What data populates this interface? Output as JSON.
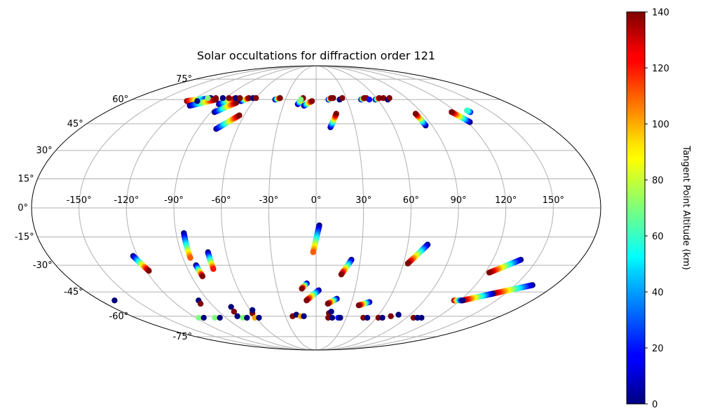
{
  "chart_data": {
    "type": "scatter",
    "projection": "mollweide",
    "title": "Solar occultations for diffraction order 121",
    "lon_ticks": [
      -150,
      -120,
      -90,
      -60,
      -30,
      0,
      30,
      60,
      90,
      120,
      150
    ],
    "lat_ticks": [
      -75,
      -60,
      -45,
      -30,
      -15,
      0,
      15,
      30,
      45,
      60,
      75
    ],
    "grid": true,
    "colorbar": {
      "label": "Tangent Point Altitude (km)",
      "min": 0,
      "max": 140,
      "ticks": [
        0,
        20,
        40,
        60,
        80,
        100,
        120,
        140
      ],
      "colormap": "jet",
      "location": "right"
    },
    "occultation_tracks": [
      {
        "lon_start": -124,
        "lat_start": 59,
        "lon_end": -105,
        "lat_end": 61,
        "alt_start": 140,
        "alt_end": 0
      },
      {
        "lon_start": -115,
        "lat_start": 56,
        "lon_end": -98,
        "lat_end": 60,
        "alt_start": 0,
        "alt_end": 140
      },
      {
        "lon_start": -90,
        "lat_start": 57,
        "lon_end": -80,
        "lat_end": 61,
        "alt_start": 0,
        "alt_end": 140
      },
      {
        "lon_start": -87,
        "lat_start": 52,
        "lon_end": -75,
        "lat_end": 58,
        "alt_start": 0,
        "alt_end": 140
      },
      {
        "lon_start": -76,
        "lat_start": 42,
        "lon_end": -64,
        "lat_end": 50,
        "alt_start": 0,
        "alt_end": 140
      },
      {
        "lon_start": -72,
        "lat_start": 59,
        "lon_end": -67,
        "lat_end": 61,
        "alt_start": 0,
        "alt_end": 140
      },
      {
        "lon_start": -40,
        "lat_start": 60,
        "lon_end": -36,
        "lat_end": 61,
        "alt_start": 0,
        "alt_end": 140
      },
      {
        "lon_start": -17,
        "lat_start": 57,
        "lon_end": -13,
        "lat_end": 61,
        "alt_start": 0,
        "alt_end": 140
      },
      {
        "lon_start": -11,
        "lat_start": 56,
        "lon_end": -4,
        "lat_end": 59,
        "alt_start": 0,
        "alt_end": 140
      },
      {
        "lon_start": 11,
        "lat_start": 43,
        "lon_end": 17,
        "lat_end": 51,
        "alt_start": 0,
        "alt_end": 140
      },
      {
        "lon_start": 12,
        "lat_start": 60,
        "lon_end": 15,
        "lat_end": 61,
        "alt_start": 0,
        "alt_end": 140
      },
      {
        "lon_start": 44,
        "lat_start": 60,
        "lon_end": 48,
        "lat_end": 61,
        "alt_start": 0,
        "alt_end": 140
      },
      {
        "lon_start": 58,
        "lat_start": 60,
        "lon_end": 63,
        "lat_end": 61,
        "alt_start": 0,
        "alt_end": 140
      },
      {
        "lon_start": 85,
        "lat_start": 44,
        "lon_end": 84,
        "lat_end": 51,
        "alt_start": 0,
        "alt_end": 140
      },
      {
        "lon_start": 122,
        "lat_start": 46,
        "lon_end": 116,
        "lat_end": 52,
        "alt_start": 0,
        "alt_end": 140
      },
      {
        "lon_start": 132,
        "lat_start": 52,
        "lon_end": 131,
        "lat_end": 53,
        "alt_start": 20,
        "alt_end": 60
      },
      {
        "lon_start": 2,
        "lat_start": -9,
        "lon_end": -2,
        "lat_end": -23,
        "alt_start": 0,
        "alt_end": 110
      },
      {
        "lon_start": 24,
        "lat_start": -27,
        "lon_end": 18,
        "lat_end": -35,
        "alt_start": 0,
        "alt_end": 140
      },
      {
        "lon_start": 73,
        "lat_start": -19,
        "lon_end": 63,
        "lat_end": -29,
        "alt_start": 0,
        "alt_end": 140
      },
      {
        "lon_start": 139,
        "lat_start": -27,
        "lon_end": 123,
        "lat_end": -34,
        "alt_start": 0,
        "alt_end": 140
      },
      {
        "lon_start": -123,
        "lat_start": -25,
        "lon_end": -118,
        "lat_end": -33,
        "alt_start": 0,
        "alt_end": 140
      },
      {
        "lon_start": -85,
        "lat_start": -13,
        "lon_end": -85,
        "lat_end": -26,
        "alt_start": 0,
        "alt_end": 110
      },
      {
        "lon_start": -83,
        "lat_start": -30,
        "lon_end": -82,
        "lat_end": -36,
        "alt_start": 0,
        "alt_end": 140
      },
      {
        "lon_start": -72,
        "lat_start": -23,
        "lon_end": -72,
        "lat_end": -32,
        "alt_start": 0,
        "alt_end": 120
      },
      {
        "lon_start": -7,
        "lat_start": -40,
        "lon_end": -11,
        "lat_end": -43,
        "alt_start": 0,
        "alt_end": 140
      },
      {
        "lon_start": 2,
        "lat_start": -44,
        "lon_end": -8,
        "lat_end": -50,
        "alt_start": 0,
        "alt_end": 140
      },
      {
        "lon_start": 17,
        "lat_start": -49,
        "lon_end": 10,
        "lat_end": -52,
        "alt_start": 0,
        "alt_end": 140
      },
      {
        "lon_start": 45,
        "lat_start": -51,
        "lon_end": 37,
        "lat_end": -53,
        "alt_start": 0,
        "alt_end": 140
      },
      {
        "lon_start": 163,
        "lat_start": -41,
        "lon_end": 140,
        "lat_end": -46,
        "alt_start": 0,
        "alt_end": 140
      },
      {
        "lon_start": 140,
        "lat_start": -46,
        "lon_end": 122,
        "lat_end": -50,
        "alt_start": 0,
        "alt_end": 140
      },
      {
        "lon_start": 115,
        "lat_start": -50,
        "lon_end": 122,
        "lat_end": -50,
        "alt_start": 140,
        "alt_end": 0
      }
    ],
    "occultation_clusters": [
      {
        "lon": -114,
        "lat": 59,
        "alt": 0
      },
      {
        "lon": -108,
        "lat": 61,
        "alt": 70
      },
      {
        "lon": -100,
        "lat": 61,
        "alt": 140
      },
      {
        "lon": -93,
        "lat": 61,
        "alt": 0
      },
      {
        "lon": -87,
        "lat": 61,
        "alt": 140
      },
      {
        "lon": -80,
        "lat": 61,
        "alt": 0
      },
      {
        "lon": -76,
        "lat": 61,
        "alt": 140
      },
      {
        "lon": -63,
        "lat": 61,
        "alt": 0
      },
      {
        "lon": -60,
        "lat": 61,
        "alt": 140
      },
      {
        "lon": -15,
        "lat": 60,
        "alt": 70
      },
      {
        "lon": 17,
        "lat": 61,
        "alt": 140
      },
      {
        "lon": 23,
        "lat": 60,
        "alt": 0
      },
      {
        "lon": 26,
        "lat": 61,
        "alt": 140
      },
      {
        "lon": 50,
        "lat": 61,
        "alt": 140
      },
      {
        "lon": 52,
        "lat": 60,
        "alt": 20
      },
      {
        "lon": 67,
        "lat": 61,
        "alt": 140
      },
      {
        "lon": 70,
        "lat": 60,
        "alt": 0
      },
      {
        "lon": 73,
        "lat": 61,
        "alt": 140
      },
      {
        "lon": -168,
        "lat": -50,
        "alt": 0
      },
      {
        "lon": -117,
        "lat": -61,
        "alt": 70
      },
      {
        "lon": -112,
        "lat": -61,
        "alt": 0
      },
      {
        "lon": -98,
        "lat": -50,
        "alt": 0
      },
      {
        "lon": -99,
        "lat": -52,
        "alt": 140
      },
      {
        "lon": -101,
        "lat": -61,
        "alt": 70
      },
      {
        "lon": -96,
        "lat": -61,
        "alt": 0
      },
      {
        "lon": -75,
        "lat": -54,
        "alt": 0
      },
      {
        "lon": -76,
        "lat": -57,
        "alt": 140
      },
      {
        "lon": -77,
        "lat": -60,
        "alt": 0
      },
      {
        "lon": -73,
        "lat": -61,
        "alt": 70
      },
      {
        "lon": -69,
        "lat": -61,
        "alt": 0
      },
      {
        "lon": -60,
        "lat": -58,
        "alt": 140
      },
      {
        "lon": -58,
        "lat": -56,
        "alt": 0
      },
      {
        "lon": -61,
        "lat": -61,
        "alt": 100
      },
      {
        "lon": -57,
        "lat": -61,
        "alt": 0
      },
      {
        "lon": -23,
        "lat": -60,
        "alt": 140
      },
      {
        "lon": -19,
        "lat": -59,
        "alt": 0
      },
      {
        "lon": -15,
        "lat": -60,
        "alt": 100
      },
      {
        "lon": -12,
        "lat": -60,
        "alt": 0
      },
      {
        "lon": 12,
        "lat": -58,
        "alt": 140
      },
      {
        "lon": 14,
        "lat": -57,
        "alt": 0
      },
      {
        "lon": 12,
        "lat": -61,
        "alt": 140
      },
      {
        "lon": 16,
        "lat": -61,
        "alt": 0
      },
      {
        "lon": 22,
        "lat": -61,
        "alt": 20
      },
      {
        "lon": 24,
        "lat": -61,
        "alt": 0
      },
      {
        "lon": 47,
        "lat": -61,
        "alt": 140
      },
      {
        "lon": 51,
        "lat": -61,
        "alt": 0
      },
      {
        "lon": 62,
        "lat": -61,
        "alt": 140
      },
      {
        "lon": 66,
        "lat": -61,
        "alt": 0
      },
      {
        "lon": 73,
        "lat": -60,
        "alt": 140
      },
      {
        "lon": 79,
        "lat": -59,
        "alt": 0
      },
      {
        "lon": 97,
        "lat": -61,
        "alt": 140
      },
      {
        "lon": 101,
        "lat": -61,
        "alt": 0
      },
      {
        "lon": 105,
        "lat": -61,
        "alt": 0
      }
    ]
  }
}
